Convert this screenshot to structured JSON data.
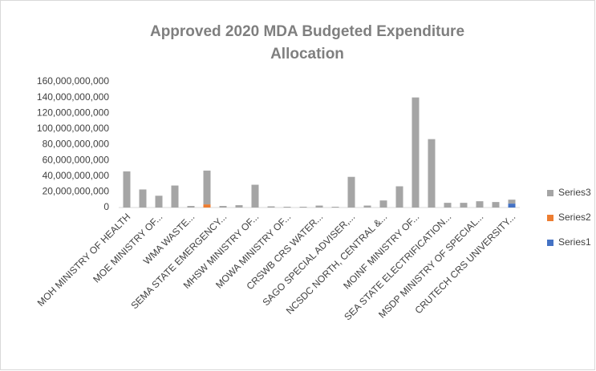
{
  "chart_data": {
    "type": "stacked_bar",
    "title": "Approved 2020 MDA Budgeted Expenditure Allocation",
    "categories": [
      "MOH MINISTRY OF HEALTH",
      null,
      "MOE MINISTRY OF...",
      null,
      "WMA WASTE...",
      null,
      "SEMA STATE EMERGENCY...",
      null,
      "MHSW MINISTRY OF...",
      null,
      "MOWA MINISTRY OF...",
      null,
      "CRSWB CRS WATER...",
      null,
      "SAGO SPECIAL ADVISER,...",
      null,
      "NCSDC NORTH, CENTRAL &...",
      null,
      "MOINF MINISTRY OF...",
      null,
      "SEA STATE ELECTRIFICATION...",
      null,
      "MSDP MINISTRY OF SPECIAL...",
      null,
      "CRUTECH CRS UNIVERSITY..."
    ],
    "series": [
      {
        "name": "Series1",
        "color": "#4472c4",
        "values": [
          null,
          null,
          null,
          null,
          null,
          null,
          null,
          null,
          null,
          null,
          null,
          null,
          null,
          null,
          null,
          null,
          null,
          null,
          null,
          null,
          null,
          null,
          null,
          null,
          5000000000
        ]
      },
      {
        "name": "Series2",
        "color": "#ed7d31",
        "values": [
          null,
          null,
          null,
          null,
          null,
          4000000000,
          null,
          null,
          null,
          null,
          null,
          null,
          null,
          null,
          null,
          null,
          null,
          null,
          null,
          null,
          null,
          null,
          null,
          null,
          null
        ]
      },
      {
        "name": "Series3",
        "color": "#a5a5a5",
        "values": [
          46000000000,
          23000000000,
          15000000000,
          28000000000,
          2000000000,
          43000000000,
          2000000000,
          3000000000,
          29000000000,
          1500000000,
          1000000000,
          1000000000,
          2500000000,
          1000000000,
          39000000000,
          2500000000,
          9000000000,
          27000000000,
          140000000000,
          87000000000,
          6000000000,
          6000000000,
          8000000000,
          7000000000,
          5000000000
        ]
      }
    ],
    "ylim": [
      0,
      160000000000
    ],
    "yticks": [
      0,
      {
        "value": 20000000000,
        "label": "20,000,000,000"
      },
      {
        "value": 40000000000,
        "label": "40,000,000,000"
      },
      {
        "value": 60000000000,
        "label": "60,000,000,000"
      },
      {
        "value": 80000000000,
        "label": "80,000,000,000"
      },
      {
        "value": 100000000000,
        "label": "100,000,000,000"
      },
      {
        "value": 120000000000,
        "label": "120,000,000,000"
      },
      {
        "value": 140000000000,
        "label": "140,000,000,000"
      },
      {
        "value": 160000000000,
        "label": "160,000,000,000"
      }
    ],
    "legend": "right"
  }
}
